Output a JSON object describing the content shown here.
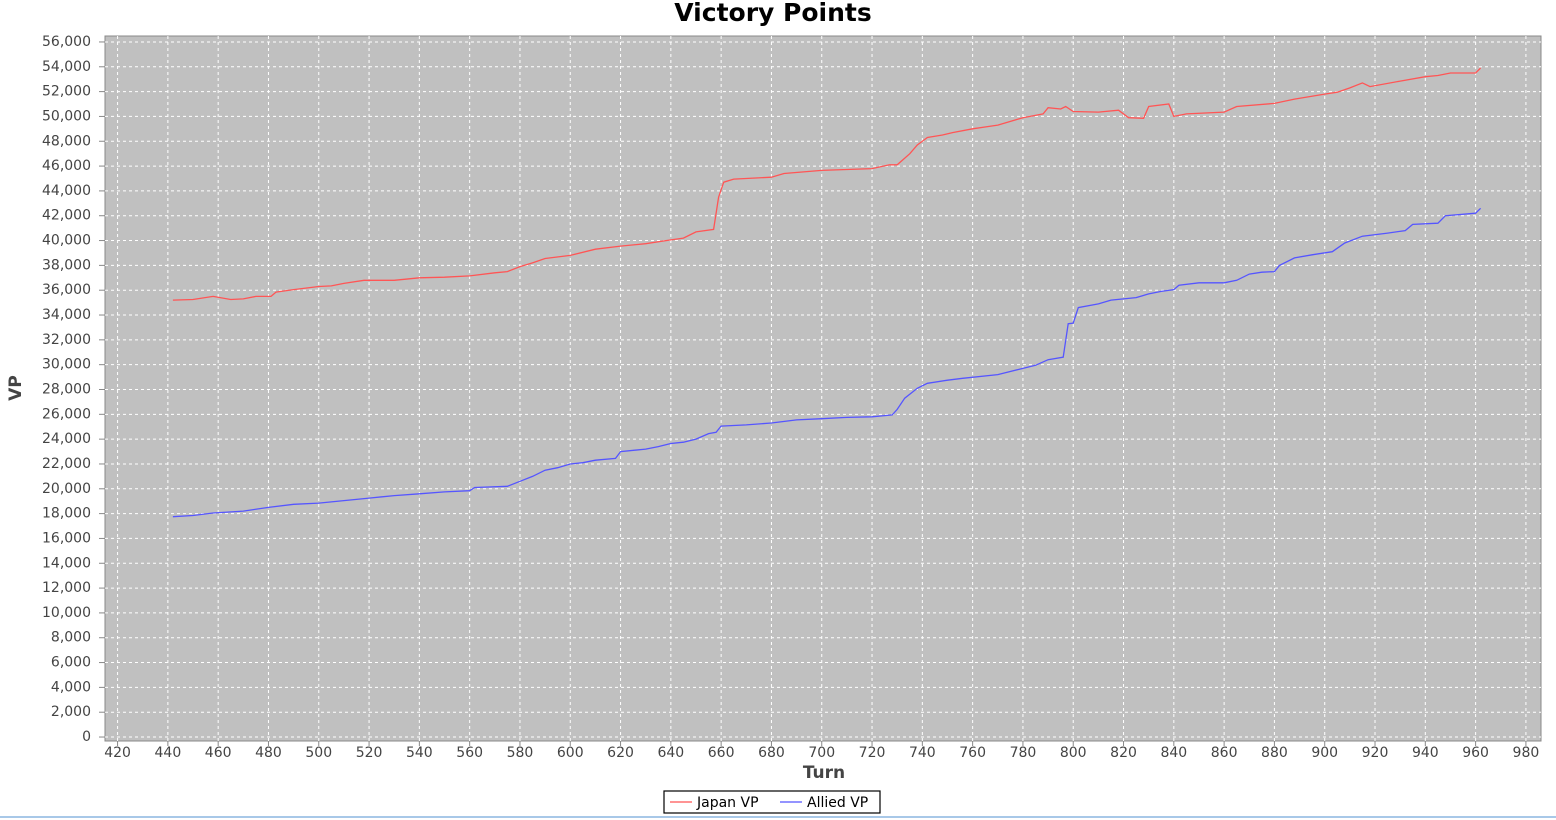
{
  "chart_data": {
    "type": "line",
    "title": "Victory Points",
    "x_label": "Turn",
    "y_label": "VP",
    "xlim": [
      415,
      986
    ],
    "ylim": [
      -320,
      56480
    ],
    "xticks": [
      420,
      440,
      460,
      480,
      500,
      520,
      540,
      560,
      580,
      600,
      620,
      640,
      660,
      680,
      700,
      720,
      740,
      760,
      780,
      800,
      820,
      840,
      860,
      880,
      900,
      920,
      940,
      960,
      980
    ],
    "yticks": [
      0,
      {
        "value": 2000,
        "label": "2,000"
      },
      {
        "value": 4000,
        "label": "4,000"
      },
      {
        "value": 6000,
        "label": "6,000"
      },
      {
        "value": 8000,
        "label": "8,000"
      },
      {
        "value": 10000,
        "label": "10,000"
      },
      {
        "value": 12000,
        "label": "12,000"
      },
      {
        "value": 14000,
        "label": "14,000"
      },
      {
        "value": 16000,
        "label": "16,000"
      },
      {
        "value": 18000,
        "label": "18,000"
      },
      {
        "value": 20000,
        "label": "20,000"
      },
      {
        "value": 22000,
        "label": "22,000"
      },
      {
        "value": 24000,
        "label": "24,000"
      },
      {
        "value": 26000,
        "label": "26,000"
      },
      {
        "value": 28000,
        "label": "28,000"
      },
      {
        "value": 30000,
        "label": "30,000"
      },
      {
        "value": 32000,
        "label": "32,000"
      },
      {
        "value": 34000,
        "label": "34,000"
      },
      {
        "value": 36000,
        "label": "36,000"
      },
      {
        "value": 38000,
        "label": "38,000"
      },
      {
        "value": 40000,
        "label": "40,000"
      },
      {
        "value": 42000,
        "label": "42,000"
      },
      {
        "value": 44000,
        "label": "44,000"
      },
      {
        "value": 46000,
        "label": "46,000"
      },
      {
        "value": 48000,
        "label": "48,000"
      },
      {
        "value": 50000,
        "label": "50,000"
      },
      {
        "value": 52000,
        "label": "52,000"
      },
      {
        "value": 54000,
        "label": "54,000"
      },
      {
        "value": 56000,
        "label": "56,000"
      }
    ],
    "grid": true,
    "legend": "bottom",
    "series": [
      {
        "name": "Japan VP",
        "color": "#ff5555",
        "x": [
          442,
          450,
          458,
          465,
          470,
          475,
          481,
          483,
          490,
          500,
          505,
          510,
          518,
          530,
          540,
          550,
          560,
          570,
          575,
          580,
          585,
          590,
          600,
          610,
          620,
          630,
          640,
          645,
          650,
          657,
          659,
          661,
          665,
          680,
          685,
          700,
          720,
          727,
          730,
          735,
          738,
          742,
          748,
          752,
          760,
          770,
          780,
          788,
          790,
          795,
          797,
          800,
          810,
          818,
          822,
          828,
          830,
          838,
          840,
          845,
          860,
          865,
          880,
          888,
          900,
          905,
          910,
          915,
          918,
          930,
          940,
          945,
          950,
          960,
          962
        ],
        "values": [
          35200,
          35250,
          35500,
          35250,
          35300,
          35500,
          35500,
          35850,
          36050,
          36300,
          36350,
          36550,
          36800,
          36800,
          37000,
          37050,
          37150,
          37400,
          37500,
          37900,
          38200,
          38550,
          38800,
          39300,
          39550,
          39750,
          40050,
          40200,
          40700,
          40900,
          43500,
          44700,
          44950,
          45100,
          45400,
          45650,
          45800,
          46100,
          46100,
          47000,
          47700,
          48300,
          48500,
          48700,
          49000,
          49300,
          49900,
          50200,
          50700,
          50600,
          50800,
          50400,
          50350,
          50500,
          49900,
          49850,
          50800,
          51000,
          50000,
          50200,
          50350,
          50800,
          51050,
          51400,
          51800,
          51950,
          52300,
          52700,
          52400,
          52850,
          53200,
          53300,
          53500,
          53500,
          53900
        ]
      },
      {
        "name": "Allied VP",
        "color": "#5555ff",
        "x": [
          442,
          450,
          458,
          470,
          480,
          490,
          500,
          510,
          520,
          530,
          540,
          550,
          560,
          562,
          575,
          580,
          585,
          590,
          595,
          600,
          605,
          610,
          618,
          620,
          630,
          635,
          640,
          645,
          650,
          655,
          658,
          660,
          670,
          680,
          690,
          700,
          710,
          720,
          728,
          730,
          733,
          738,
          742,
          750,
          756,
          770,
          778,
          785,
          790,
          796,
          798,
          800,
          802,
          810,
          815,
          825,
          830,
          835,
          840,
          842,
          850,
          860,
          865,
          870,
          875,
          880,
          882,
          888,
          895,
          903,
          908,
          915,
          925,
          932,
          935,
          945,
          948,
          960,
          962
        ],
        "values": [
          17750,
          17850,
          18050,
          18200,
          18500,
          18750,
          18850,
          19050,
          19250,
          19450,
          19600,
          19750,
          19850,
          20100,
          20200,
          20600,
          21000,
          21500,
          21700,
          22000,
          22100,
          22300,
          22450,
          23000,
          23200,
          23400,
          23650,
          23750,
          24000,
          24450,
          24550,
          25050,
          25150,
          25300,
          25550,
          25650,
          25750,
          25800,
          25950,
          26400,
          27300,
          28100,
          28500,
          28750,
          28900,
          29200,
          29600,
          29950,
          30400,
          30600,
          33300,
          33350,
          34600,
          34900,
          35200,
          35400,
          35700,
          35900,
          36050,
          36400,
          36600,
          36600,
          36800,
          37300,
          37450,
          37500,
          38000,
          38600,
          38850,
          39100,
          39800,
          40350,
          40600,
          40800,
          41300,
          41400,
          42000,
          42200,
          42600
        ]
      }
    ]
  }
}
